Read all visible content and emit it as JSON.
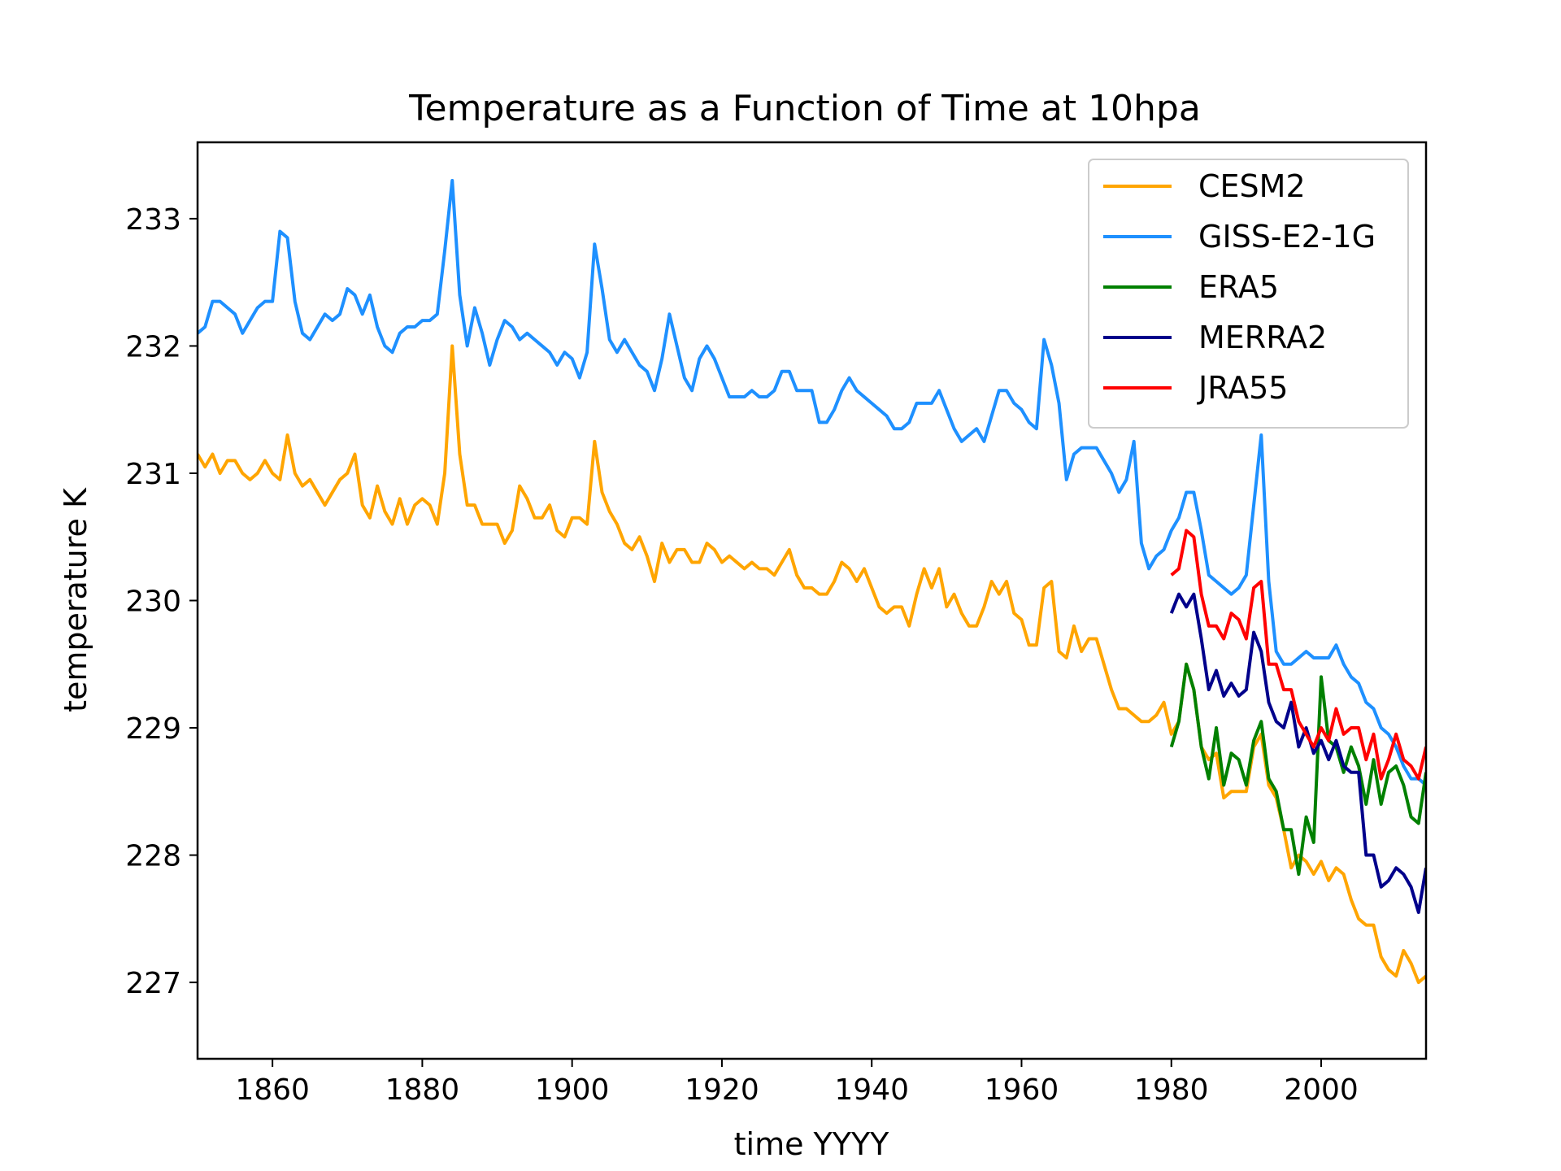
{
  "chart_data": {
    "type": "line",
    "title": "Temperature as a Function of Time at 10hpa",
    "xlabel": "time YYYY",
    "ylabel": "temperature K",
    "xlim": [
      1850,
      2014
    ],
    "ylim": [
      226.4,
      233.6
    ],
    "xticks": [
      1860,
      1880,
      1900,
      1920,
      1940,
      1960,
      1980,
      2000
    ],
    "yticks": [
      227,
      228,
      229,
      230,
      231,
      232,
      233
    ],
    "legend_position": "top-right",
    "grid": false,
    "series": [
      {
        "name": "CESM2",
        "color": "#ffa500",
        "x_start": 1850,
        "values": [
          231.15,
          231.05,
          231.15,
          231.0,
          231.1,
          231.1,
          231.0,
          230.95,
          231.0,
          231.1,
          231.0,
          230.95,
          231.3,
          231.0,
          230.9,
          230.95,
          230.85,
          230.75,
          230.85,
          230.95,
          231.0,
          231.15,
          230.75,
          230.65,
          230.9,
          230.7,
          230.6,
          230.8,
          230.6,
          230.75,
          230.8,
          230.75,
          230.6,
          231.0,
          232.0,
          231.15,
          230.75,
          230.75,
          230.6,
          230.6,
          230.6,
          230.45,
          230.55,
          230.9,
          230.8,
          230.65,
          230.65,
          230.75,
          230.55,
          230.5,
          230.65,
          230.65,
          230.6,
          231.25,
          230.85,
          230.7,
          230.6,
          230.45,
          230.4,
          230.5,
          230.35,
          230.15,
          230.45,
          230.3,
          230.4,
          230.4,
          230.3,
          230.3,
          230.45,
          230.4,
          230.3,
          230.35,
          230.3,
          230.25,
          230.3,
          230.25,
          230.25,
          230.2,
          230.3,
          230.4,
          230.2,
          230.1,
          230.1,
          230.05,
          230.05,
          230.15,
          230.3,
          230.25,
          230.15,
          230.25,
          230.1,
          229.95,
          229.9,
          229.95,
          229.95,
          229.8,
          230.05,
          230.25,
          230.1,
          230.25,
          229.95,
          230.05,
          229.9,
          229.8,
          229.8,
          229.95,
          230.15,
          230.05,
          230.15,
          229.9,
          229.85,
          229.65,
          229.65,
          230.1,
          230.15,
          229.6,
          229.55,
          229.8,
          229.6,
          229.7,
          229.7,
          229.5,
          229.3,
          229.15,
          229.15,
          229.1,
          229.05,
          229.05,
          229.1,
          229.2,
          228.95,
          229.05,
          229.5,
          229.3,
          228.85,
          228.75,
          228.8,
          228.45,
          228.5,
          228.5,
          228.5,
          228.85,
          228.95,
          228.55,
          228.45,
          228.2,
          227.9,
          228.0,
          227.95,
          227.85,
          227.95,
          227.8,
          227.9,
          227.85,
          227.65,
          227.5,
          227.45,
          227.45,
          227.2,
          227.1,
          227.05,
          227.25,
          227.15,
          227.0,
          227.05
        ]
      },
      {
        "name": "GISS-E2-1G",
        "color": "#1e90ff",
        "x_start": 1850,
        "values": [
          232.1,
          232.15,
          232.35,
          232.35,
          232.3,
          232.25,
          232.1,
          232.2,
          232.3,
          232.35,
          232.35,
          232.9,
          232.85,
          232.35,
          232.1,
          232.05,
          232.15,
          232.25,
          232.2,
          232.25,
          232.45,
          232.4,
          232.25,
          232.4,
          232.15,
          232.0,
          231.95,
          232.1,
          232.15,
          232.15,
          232.2,
          232.2,
          232.25,
          232.75,
          233.3,
          232.4,
          232.0,
          232.3,
          232.1,
          231.85,
          232.05,
          232.2,
          232.15,
          232.05,
          232.1,
          232.05,
          232.0,
          231.95,
          231.85,
          231.95,
          231.9,
          231.75,
          231.95,
          232.8,
          232.45,
          232.05,
          231.95,
          232.05,
          231.95,
          231.85,
          231.8,
          231.65,
          231.9,
          232.25,
          232.0,
          231.75,
          231.65,
          231.9,
          232.0,
          231.9,
          231.75,
          231.6,
          231.6,
          231.6,
          231.65,
          231.6,
          231.6,
          231.65,
          231.8,
          231.8,
          231.65,
          231.65,
          231.65,
          231.4,
          231.4,
          231.5,
          231.65,
          231.75,
          231.65,
          231.6,
          231.55,
          231.5,
          231.45,
          231.35,
          231.35,
          231.4,
          231.55,
          231.55,
          231.55,
          231.65,
          231.5,
          231.35,
          231.25,
          231.3,
          231.35,
          231.25,
          231.45,
          231.65,
          231.65,
          231.55,
          231.5,
          231.4,
          231.35,
          232.05,
          231.85,
          231.55,
          230.95,
          231.15,
          231.2,
          231.2,
          231.2,
          231.1,
          231.0,
          230.85,
          230.95,
          231.25,
          230.45,
          230.25,
          230.35,
          230.4,
          230.55,
          230.65,
          230.85,
          230.85,
          230.55,
          230.2,
          230.15,
          230.1,
          230.05,
          230.1,
          230.2,
          230.75,
          231.3,
          230.15,
          229.6,
          229.5,
          229.5,
          229.55,
          229.6,
          229.55,
          229.55,
          229.55,
          229.65,
          229.5,
          229.4,
          229.35,
          229.2,
          229.15,
          229.0,
          228.95,
          228.85,
          228.7,
          228.6,
          228.6,
          228.55
        ]
      },
      {
        "name": "ERA5",
        "color": "#008000",
        "x_start": 1980,
        "values": [
          228.85,
          229.05,
          229.5,
          229.3,
          228.85,
          228.6,
          229.0,
          228.55,
          228.8,
          228.75,
          228.55,
          228.9,
          229.05,
          228.6,
          228.5,
          228.2,
          228.2,
          227.85,
          228.3,
          228.1,
          229.4,
          228.9,
          228.85,
          228.65,
          228.85,
          228.7,
          228.4,
          228.75,
          228.4,
          228.65,
          228.7,
          228.55,
          228.3,
          228.25,
          228.65
        ]
      },
      {
        "name": "MERRA2",
        "color": "#00008b",
        "x_start": 1980,
        "values": [
          229.9,
          230.05,
          229.95,
          230.05,
          229.7,
          229.3,
          229.45,
          229.25,
          229.35,
          229.25,
          229.3,
          229.75,
          229.6,
          229.2,
          229.05,
          229.0,
          229.2,
          228.85,
          229.0,
          228.8,
          228.9,
          228.75,
          228.9,
          228.7,
          228.65,
          228.65,
          228.0,
          228.0,
          227.75,
          227.8,
          227.9,
          227.85,
          227.75,
          227.55,
          227.9
        ]
      },
      {
        "name": "JRA55",
        "color": "#ff0000",
        "x_start": 1980,
        "values": [
          230.2,
          230.25,
          230.55,
          230.5,
          230.05,
          229.8,
          229.8,
          229.7,
          229.9,
          229.85,
          229.7,
          230.1,
          230.15,
          229.5,
          229.5,
          229.3,
          229.3,
          229.05,
          228.95,
          228.85,
          229.0,
          228.9,
          229.15,
          228.95,
          229.0,
          229.0,
          228.75,
          228.95,
          228.6,
          228.75,
          228.95,
          228.75,
          228.7,
          228.6,
          228.85
        ]
      }
    ]
  }
}
